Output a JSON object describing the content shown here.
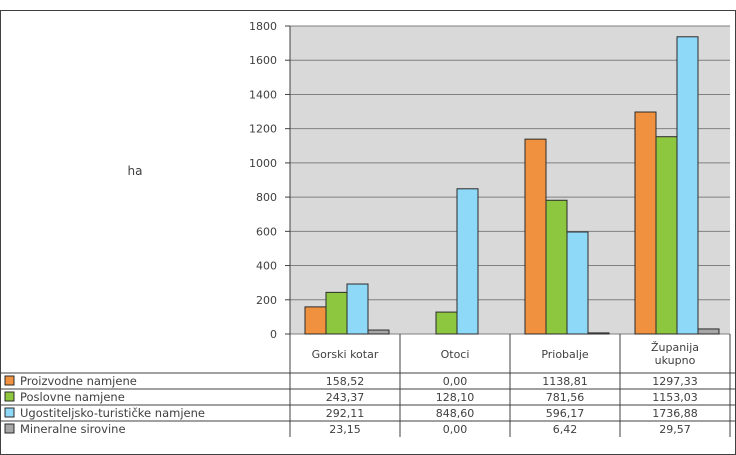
{
  "chart_data": {
    "type": "bar",
    "ylabel": "ha",
    "ylim": [
      0,
      1800
    ],
    "yticks": [
      0,
      200,
      400,
      600,
      800,
      1000,
      1200,
      1400,
      1600,
      1800
    ],
    "grid": true,
    "legend": "table-left",
    "categories": [
      "Gorski kotar",
      "Otoci",
      "Priobalje",
      "Županija ukupno"
    ],
    "series": [
      {
        "name": "Proizvodne namjene",
        "color": "#f0913f",
        "values": [
          158.52,
          0.0,
          1138.81,
          1297.33
        ],
        "labels": [
          "158,52",
          "0,00",
          "1138,81",
          "1297,33"
        ]
      },
      {
        "name": "Poslovne namjene",
        "color": "#8dc63f",
        "values": [
          243.37,
          128.1,
          781.56,
          1153.03
        ],
        "labels": [
          "243,37",
          "128,10",
          "781,56",
          "1153,03"
        ]
      },
      {
        "name": "Ugostiteljsko-turističke namjene",
        "color": "#8ed8f8",
        "values": [
          292.11,
          848.6,
          596.17,
          1736.88
        ],
        "labels": [
          "292,11",
          "848,60",
          "596,17",
          "1736,88"
        ]
      },
      {
        "name": "Mineralne sirovine",
        "color": "#a6a6a6",
        "values": [
          23.15,
          0.0,
          6.42,
          29.57
        ],
        "labels": [
          "23,15",
          "0,00",
          "6,42",
          "29,57"
        ]
      }
    ]
  }
}
